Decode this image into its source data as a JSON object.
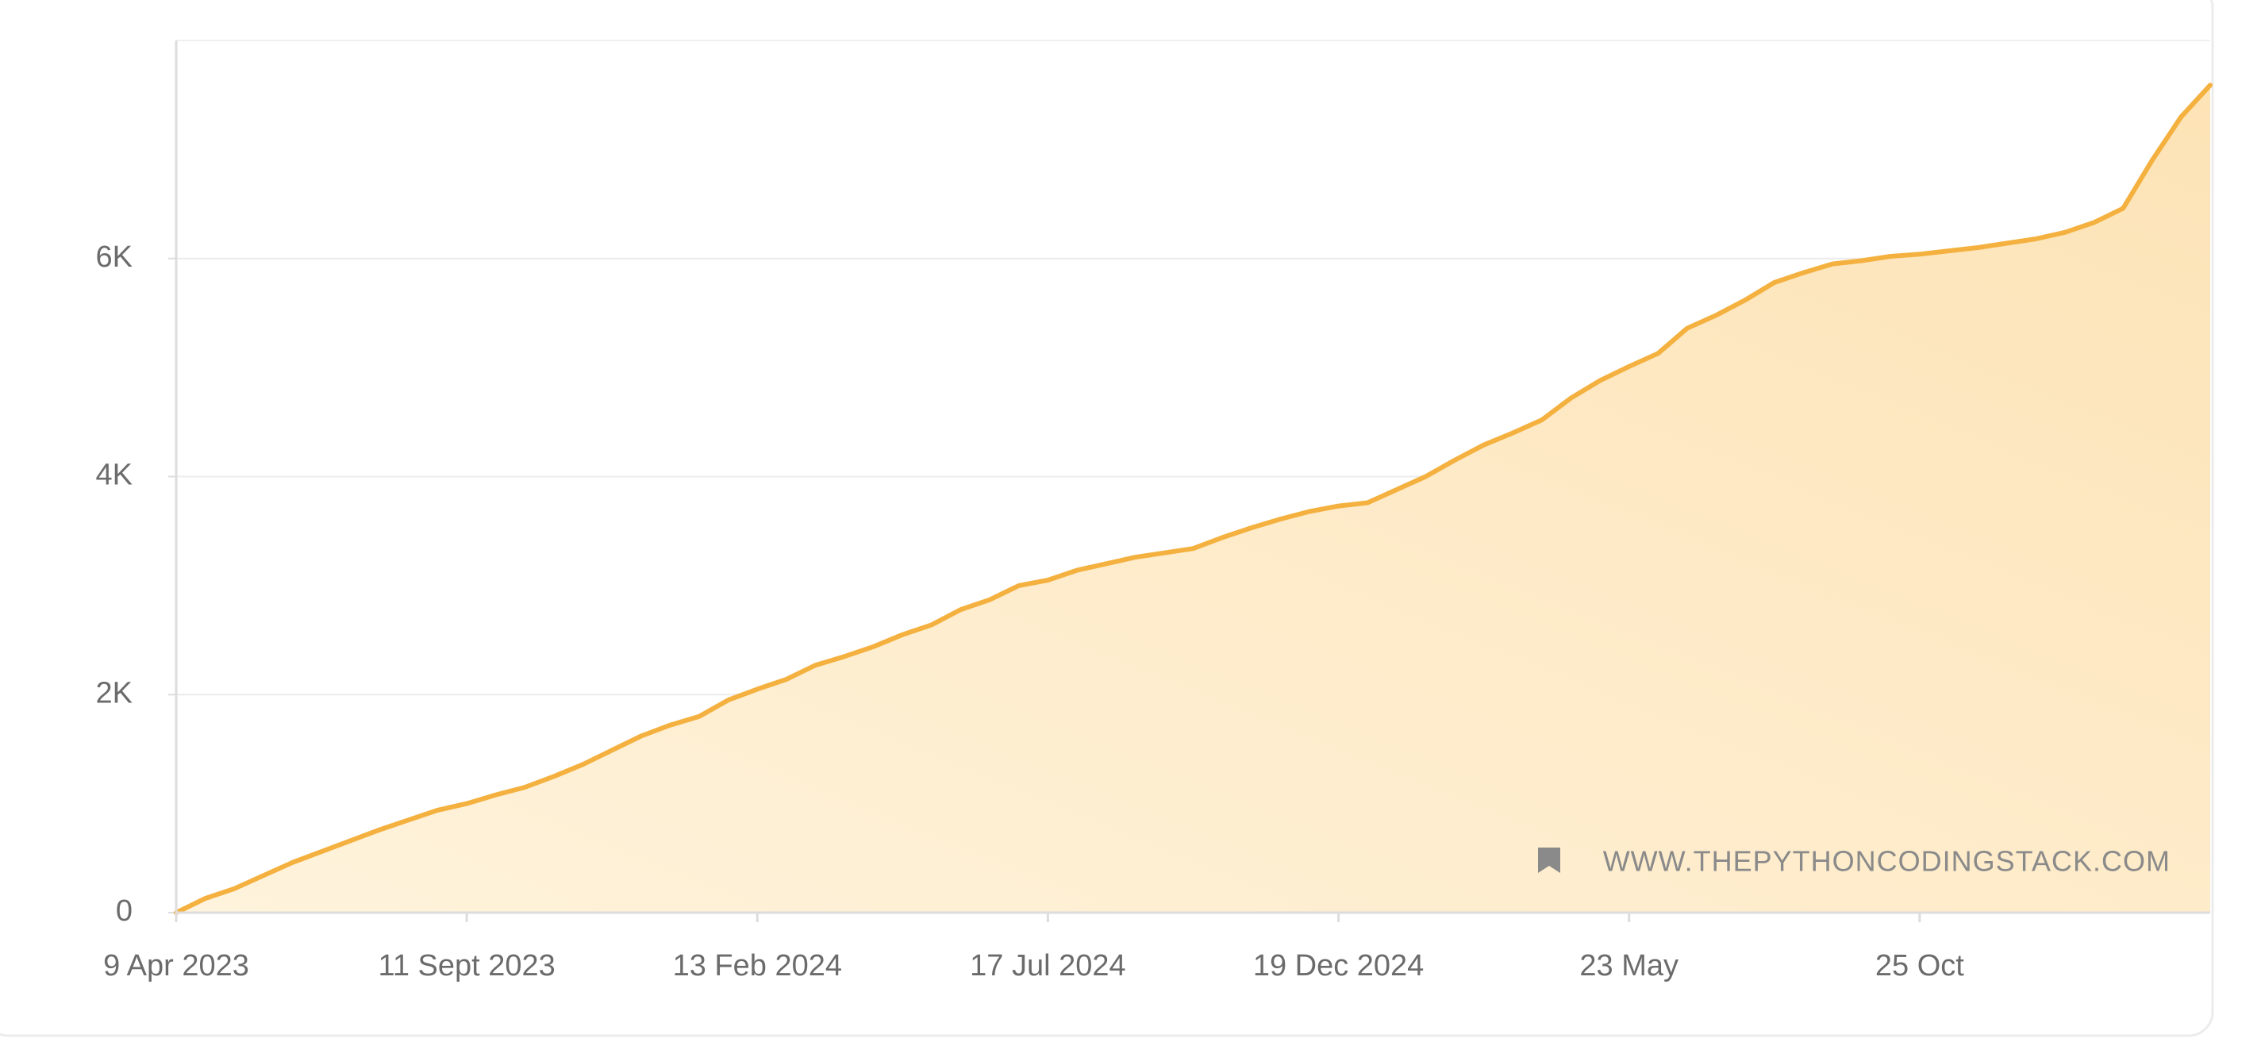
{
  "chart_data": {
    "type": "area",
    "watermark": "WWW.THEPYTHONCODINGSTACK.COM",
    "categories": [
      "9 Apr 2023",
      null,
      null,
      null,
      null,
      null,
      null,
      null,
      null,
      null,
      "11 Sept 2023",
      null,
      null,
      null,
      null,
      null,
      null,
      null,
      null,
      null,
      "13 Feb 2024",
      null,
      null,
      null,
      null,
      null,
      null,
      null,
      null,
      null,
      "17 Jul 2024",
      null,
      null,
      null,
      null,
      null,
      null,
      null,
      null,
      null,
      "19 Dec 2024",
      null,
      null,
      null,
      null,
      null,
      null,
      null,
      null,
      null,
      "23 May",
      null,
      null,
      null,
      null,
      null,
      null,
      null,
      null,
      null,
      "25 Oct",
      null,
      null,
      null,
      null,
      null,
      null,
      null,
      null,
      null,
      null
    ],
    "values": [
      0,
      130,
      220,
      340,
      460,
      560,
      660,
      760,
      850,
      940,
      1000,
      1080,
      1150,
      1250,
      1360,
      1490,
      1620,
      1720,
      1800,
      1950,
      2050,
      2140,
      2270,
      2350,
      2440,
      2550,
      2640,
      2780,
      2870,
      3000,
      3050,
      3140,
      3200,
      3260,
      3300,
      3340,
      3440,
      3530,
      3610,
      3680,
      3730,
      3760,
      3880,
      4000,
      4150,
      4290,
      4400,
      4520,
      4720,
      4880,
      5010,
      5130,
      5360,
      5480,
      5620,
      5780,
      5870,
      5950,
      5980,
      6020,
      6040,
      6070,
      6100,
      6140,
      6180,
      6240,
      6330,
      6460,
      6900,
      7300,
      7590
    ],
    "color": "#f4b13f",
    "ylim": [
      0,
      8000
    ],
    "yticks": [
      0,
      {
        "value": 2000,
        "label": "2K"
      },
      {
        "value": 4000,
        "label": "4K"
      },
      {
        "value": 6000,
        "label": "6K"
      }
    ],
    "grid": true
  }
}
